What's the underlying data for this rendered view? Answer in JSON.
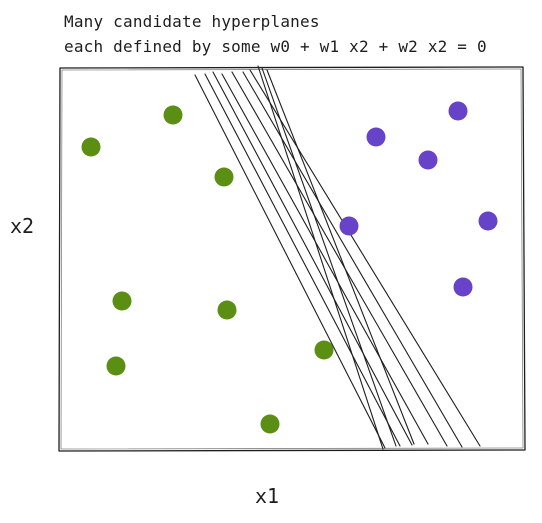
{
  "caption": {
    "line1": "Many candidate hyperplanes",
    "line2": "each defined by some w0 + w1 x2 + w2 x2 = 0"
  },
  "axes": {
    "xlabel": "x1",
    "ylabel": "x2"
  },
  "colors": {
    "class_a": "#5a8f13",
    "class_b": "#6743c9",
    "ink": "#1e1e1e"
  },
  "points": {
    "class_a": [
      [
        91,
        147
      ],
      [
        173,
        115
      ],
      [
        224,
        177
      ],
      [
        122,
        301
      ],
      [
        227,
        310
      ],
      [
        116,
        366
      ],
      [
        324,
        350
      ],
      [
        270,
        424
      ]
    ],
    "class_b": [
      [
        376,
        137
      ],
      [
        458,
        111
      ],
      [
        428,
        160
      ],
      [
        349,
        226
      ],
      [
        488,
        221
      ],
      [
        463,
        287
      ]
    ]
  },
  "hyperplanes": [
    [
      [
        195,
        75
      ],
      [
        385,
        448
      ]
    ],
    [
      [
        205,
        74
      ],
      [
        400,
        446
      ]
    ],
    [
      [
        213,
        72
      ],
      [
        412,
        445
      ]
    ],
    [
      [
        222,
        74
      ],
      [
        428,
        444
      ]
    ],
    [
      [
        232,
        72
      ],
      [
        447,
        446
      ]
    ],
    [
      [
        243,
        72
      ],
      [
        462,
        447
      ]
    ],
    [
      [
        250,
        70
      ],
      [
        480,
        446
      ]
    ],
    [
      [
        258,
        66
      ],
      [
        383,
        449
      ]
    ],
    [
      [
        262,
        68
      ],
      [
        396,
        446
      ]
    ],
    [
      [
        267,
        70
      ],
      [
        414,
        444
      ]
    ]
  ]
}
